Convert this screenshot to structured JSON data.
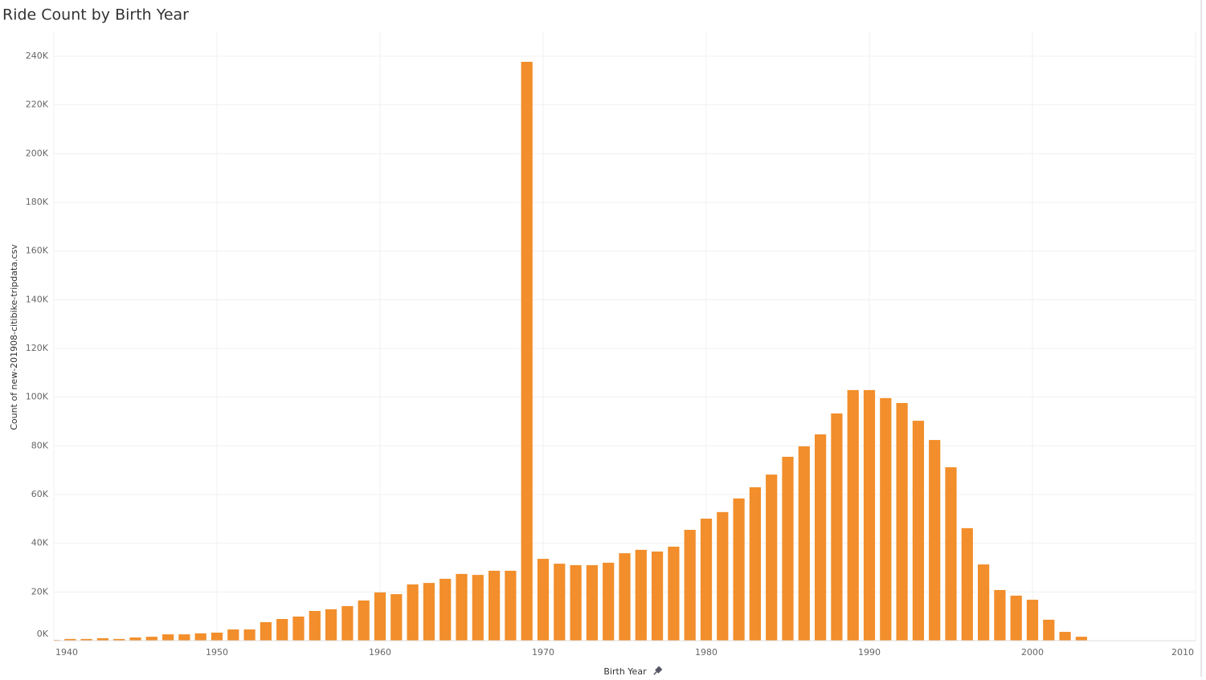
{
  "chart_data": {
    "type": "bar",
    "title": "Ride Count by Birth Year",
    "x_label": "Birth Year",
    "y_label": "Count of new-201908-citibike-tripdata.csv",
    "x": [
      1940,
      1941,
      1942,
      1943,
      1944,
      1945,
      1946,
      1947,
      1948,
      1949,
      1950,
      1951,
      1952,
      1953,
      1954,
      1955,
      1956,
      1957,
      1958,
      1959,
      1960,
      1961,
      1962,
      1963,
      1964,
      1965,
      1966,
      1967,
      1968,
      1969,
      1970,
      1971,
      1972,
      1973,
      1974,
      1975,
      1976,
      1977,
      1978,
      1979,
      1980,
      1981,
      1982,
      1983,
      1984,
      1985,
      1986,
      1987,
      1988,
      1989,
      1990,
      1991,
      1992,
      1993,
      1994,
      1995,
      1996,
      1997,
      1998,
      1999,
      2000,
      2001,
      2002,
      2003
    ],
    "values": [
      300,
      700,
      700,
      1000,
      700,
      1300,
      1600,
      2600,
      2600,
      3000,
      3300,
      4600,
      4600,
      7600,
      8900,
      9900,
      12200,
      12900,
      14200,
      16500,
      19800,
      19100,
      23100,
      23700,
      25400,
      27400,
      27000,
      28700,
      28700,
      237700,
      33600,
      31600,
      31000,
      31000,
      32000,
      35900,
      37300,
      36600,
      38600,
      45500,
      50100,
      52800,
      58400,
      63000,
      68200,
      75500,
      79800,
      84700,
      93300,
      102900,
      102900,
      99600,
      97600,
      90300,
      82400,
      71200,
      46200,
      31300,
      20800,
      18500,
      16800,
      8600,
      3600,
      1600
    ],
    "color": "#f28e2b",
    "xlim": [
      1940,
      2010
    ],
    "xticks": [
      1940,
      1950,
      1960,
      1970,
      1980,
      1990,
      2000,
      2010
    ],
    "ylim": [
      0,
      240000
    ],
    "yticks": [
      {
        "value": 0,
        "label": "0K"
      },
      {
        "value": 20000,
        "label": "20K"
      },
      {
        "value": 40000,
        "label": "40K"
      },
      {
        "value": 60000,
        "label": "60K"
      },
      {
        "value": 80000,
        "label": "80K"
      },
      {
        "value": 100000,
        "label": "100K"
      },
      {
        "value": 120000,
        "label": "120K"
      },
      {
        "value": 140000,
        "label": "140K"
      },
      {
        "value": 160000,
        "label": "160K"
      },
      {
        "value": 180000,
        "label": "180K"
      },
      {
        "value": 200000,
        "label": "200K"
      },
      {
        "value": 220000,
        "label": "220K"
      },
      {
        "value": 240000,
        "label": "240K"
      }
    ],
    "grid": true
  }
}
